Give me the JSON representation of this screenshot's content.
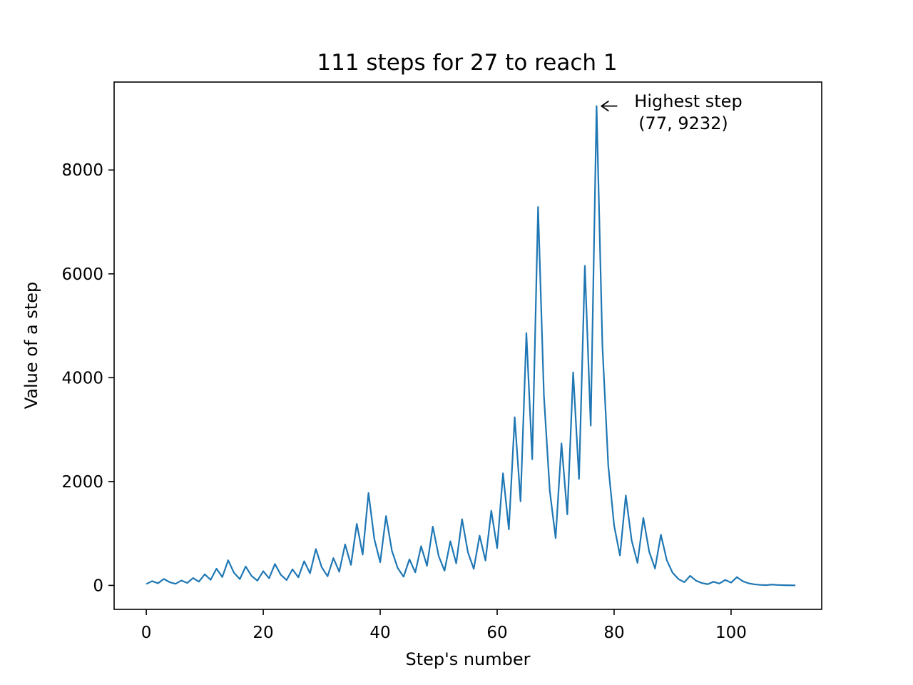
{
  "chart_data": {
    "type": "line",
    "title": "111 steps for 27 to reach 1",
    "xlabel": "Step's number",
    "ylabel": "Value of a step",
    "xlim": [
      -5.5,
      115.5
    ],
    "ylim": [
      -461.6,
      9693.6
    ],
    "xticks": [
      0,
      20,
      40,
      60,
      80,
      100
    ],
    "yticks": [
      0,
      2000,
      4000,
      6000,
      8000
    ],
    "grid": false,
    "line_color": "#1f77b4",
    "series": [
      {
        "values": [
          27,
          82,
          41,
          124,
          62,
          31,
          94,
          47,
          142,
          71,
          214,
          107,
          322,
          161,
          484,
          242,
          121,
          364,
          182,
          91,
          274,
          137,
          412,
          206,
          103,
          310,
          155,
          466,
          233,
          700,
          350,
          175,
          526,
          263,
          790,
          395,
          1186,
          593,
          1780,
          890,
          445,
          1336,
          668,
          334,
          167,
          502,
          251,
          754,
          377,
          1132,
          566,
          283,
          850,
          425,
          1276,
          638,
          319,
          958,
          479,
          1438,
          719,
          2158,
          1079,
          3238,
          1619,
          4858,
          2429,
          7288,
          3644,
          1822,
          911,
          2734,
          1367,
          4102,
          2051,
          6154,
          3077,
          9232,
          4616,
          2308,
          1154,
          577,
          1732,
          866,
          433,
          1300,
          650,
          325,
          976,
          488,
          244,
          122,
          61,
          184,
          92,
          46,
          23,
          70,
          35,
          106,
          53,
          160,
          80,
          40,
          20,
          10,
          5,
          16,
          8,
          4,
          2,
          1
        ]
      }
    ],
    "annotation": {
      "line1": "Highest step",
      "line2": "(77, 9232)",
      "x": 77,
      "y": 9232
    }
  }
}
